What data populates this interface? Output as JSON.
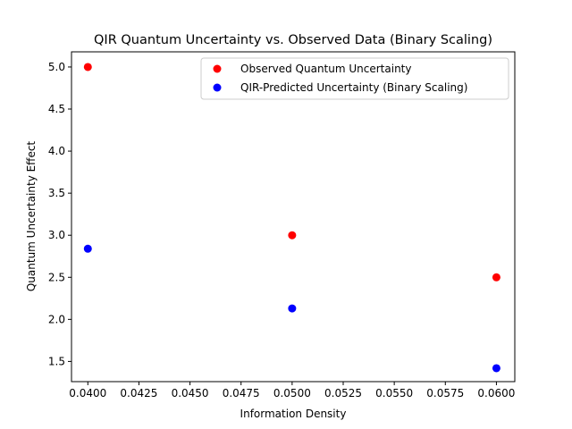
{
  "chart_data": {
    "type": "scatter",
    "title": "QIR Quantum Uncertainty vs. Observed Data (Binary Scaling)",
    "xlabel": "Information Density",
    "ylabel": "Quantum Uncertainty Effect",
    "xlim": [
      0.0392,
      0.0609
    ],
    "ylim": [
      1.26,
      5.18
    ],
    "xticks": [
      0.04,
      0.0425,
      0.045,
      0.0475,
      0.05,
      0.0525,
      0.055,
      0.0575,
      0.06
    ],
    "xtick_labels": [
      "0.0400",
      "0.0425",
      "0.0450",
      "0.0475",
      "0.0500",
      "0.0525",
      "0.0550",
      "0.0575",
      "0.0600"
    ],
    "yticks": [
      1.5,
      2.0,
      2.5,
      3.0,
      3.5,
      4.0,
      4.5,
      5.0
    ],
    "ytick_labels": [
      "1.5",
      "2.0",
      "2.5",
      "3.0",
      "3.5",
      "4.0",
      "4.5",
      "5.0"
    ],
    "grid": false,
    "legend_position": "upper-right",
    "series": [
      {
        "name": "Observed Quantum Uncertainty",
        "color": "#ff0000",
        "points": [
          {
            "x": 0.04,
            "y": 5.0
          },
          {
            "x": 0.05,
            "y": 3.0
          },
          {
            "x": 0.06,
            "y": 2.5
          }
        ]
      },
      {
        "name": "QIR-Predicted Uncertainty (Binary Scaling)",
        "color": "#0000ff",
        "points": [
          {
            "x": 0.04,
            "y": 2.84
          },
          {
            "x": 0.05,
            "y": 2.13
          },
          {
            "x": 0.06,
            "y": 1.42
          }
        ]
      }
    ]
  }
}
